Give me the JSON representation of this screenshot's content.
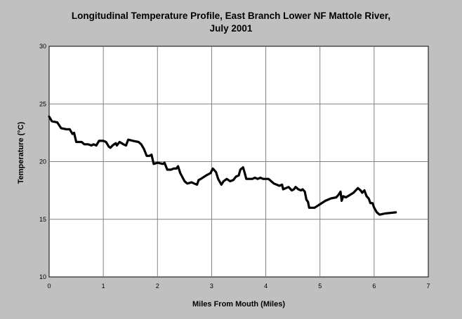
{
  "chart_data": {
    "type": "line",
    "title_line1": "Longitudinal Temperature Profile, East Branch Lower NF Mattole River,",
    "title_line2": "July 2001",
    "xlabel": "Miles From Mouth (Miles)",
    "ylabel": "Temperature (°C)",
    "xlim": [
      0,
      7
    ],
    "ylim": [
      10,
      30
    ],
    "xticks": [
      0,
      1,
      2,
      3,
      4,
      5,
      6,
      7
    ],
    "yticks": [
      10,
      15,
      20,
      25,
      30
    ],
    "grid": true,
    "legend": "none",
    "series": [
      {
        "color": "#000000",
        "points": [
          [
            0.0,
            23.9
          ],
          [
            0.05,
            23.5
          ],
          [
            0.15,
            23.4
          ],
          [
            0.22,
            22.9
          ],
          [
            0.32,
            22.8
          ],
          [
            0.38,
            22.8
          ],
          [
            0.43,
            22.4
          ],
          [
            0.46,
            22.5
          ],
          [
            0.5,
            21.7
          ],
          [
            0.6,
            21.7
          ],
          [
            0.65,
            21.5
          ],
          [
            0.72,
            21.5
          ],
          [
            0.78,
            21.4
          ],
          [
            0.82,
            21.5
          ],
          [
            0.87,
            21.4
          ],
          [
            0.92,
            21.8
          ],
          [
            1.0,
            21.8
          ],
          [
            1.05,
            21.7
          ],
          [
            1.1,
            21.3
          ],
          [
            1.13,
            21.2
          ],
          [
            1.17,
            21.4
          ],
          [
            1.2,
            21.5
          ],
          [
            1.23,
            21.6
          ],
          [
            1.25,
            21.4
          ],
          [
            1.3,
            21.7
          ],
          [
            1.37,
            21.5
          ],
          [
            1.42,
            21.4
          ],
          [
            1.46,
            21.9
          ],
          [
            1.55,
            21.8
          ],
          [
            1.65,
            21.7
          ],
          [
            1.7,
            21.5
          ],
          [
            1.75,
            21.1
          ],
          [
            1.8,
            20.5
          ],
          [
            1.85,
            20.5
          ],
          [
            1.89,
            20.6
          ],
          [
            1.93,
            19.8
          ],
          [
            2.0,
            19.9
          ],
          [
            2.1,
            19.8
          ],
          [
            2.13,
            19.9
          ],
          [
            2.18,
            19.3
          ],
          [
            2.25,
            19.3
          ],
          [
            2.3,
            19.4
          ],
          [
            2.35,
            19.4
          ],
          [
            2.38,
            19.6
          ],
          [
            2.42,
            19.0
          ],
          [
            2.5,
            18.3
          ],
          [
            2.55,
            18.1
          ],
          [
            2.63,
            18.2
          ],
          [
            2.68,
            18.1
          ],
          [
            2.73,
            18.0
          ],
          [
            2.76,
            18.4
          ],
          [
            2.8,
            18.5
          ],
          [
            2.9,
            18.8
          ],
          [
            2.98,
            19.0
          ],
          [
            3.02,
            19.4
          ],
          [
            3.08,
            19.1
          ],
          [
            3.12,
            18.5
          ],
          [
            3.18,
            18.0
          ],
          [
            3.22,
            18.3
          ],
          [
            3.28,
            18.5
          ],
          [
            3.34,
            18.3
          ],
          [
            3.4,
            18.4
          ],
          [
            3.45,
            18.7
          ],
          [
            3.5,
            18.8
          ],
          [
            3.53,
            19.3
          ],
          [
            3.58,
            19.5
          ],
          [
            3.6,
            19.2
          ],
          [
            3.64,
            18.5
          ],
          [
            3.7,
            18.5
          ],
          [
            3.75,
            18.5
          ],
          [
            3.8,
            18.6
          ],
          [
            3.85,
            18.5
          ],
          [
            3.9,
            18.6
          ],
          [
            3.95,
            18.5
          ],
          [
            4.0,
            18.5
          ],
          [
            4.05,
            18.5
          ],
          [
            4.1,
            18.3
          ],
          [
            4.15,
            18.1
          ],
          [
            4.2,
            18.0
          ],
          [
            4.25,
            17.9
          ],
          [
            4.3,
            18.0
          ],
          [
            4.32,
            17.6
          ],
          [
            4.37,
            17.7
          ],
          [
            4.42,
            17.8
          ],
          [
            4.48,
            17.5
          ],
          [
            4.52,
            17.6
          ],
          [
            4.55,
            17.8
          ],
          [
            4.6,
            17.6
          ],
          [
            4.65,
            17.5
          ],
          [
            4.68,
            17.6
          ],
          [
            4.72,
            17.4
          ],
          [
            4.75,
            16.7
          ],
          [
            4.78,
            16.5
          ],
          [
            4.8,
            16.0
          ],
          [
            4.9,
            16.0
          ],
          [
            5.0,
            16.3
          ],
          [
            5.1,
            16.6
          ],
          [
            5.2,
            16.8
          ],
          [
            5.3,
            16.9
          ],
          [
            5.34,
            17.1
          ],
          [
            5.38,
            17.4
          ],
          [
            5.4,
            16.6
          ],
          [
            5.43,
            17.0
          ],
          [
            5.48,
            16.9
          ],
          [
            5.55,
            17.1
          ],
          [
            5.62,
            17.3
          ],
          [
            5.7,
            17.7
          ],
          [
            5.75,
            17.5
          ],
          [
            5.78,
            17.3
          ],
          [
            5.82,
            17.5
          ],
          [
            5.86,
            17.0
          ],
          [
            5.9,
            16.8
          ],
          [
            5.93,
            16.4
          ],
          [
            5.97,
            16.4
          ],
          [
            6.0,
            16.0
          ],
          [
            6.05,
            15.6
          ],
          [
            6.1,
            15.4
          ],
          [
            6.2,
            15.5
          ],
          [
            6.3,
            15.55
          ],
          [
            6.4,
            15.6
          ]
        ]
      }
    ]
  }
}
